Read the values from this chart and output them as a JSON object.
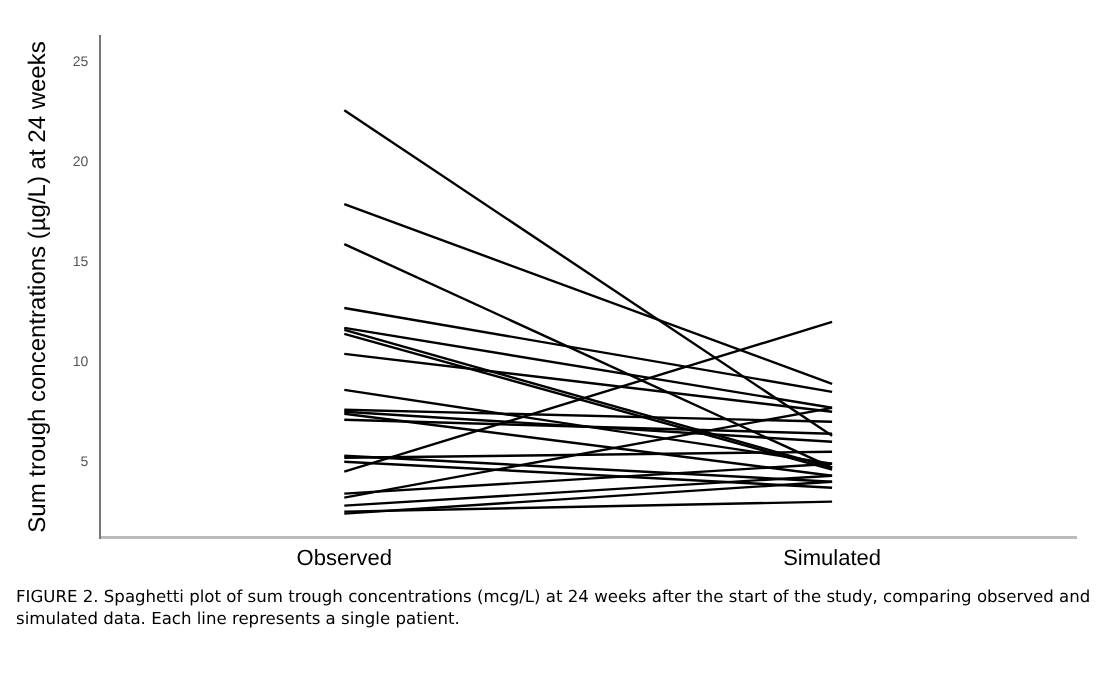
{
  "chart_data": {
    "type": "line",
    "ylabel": "Sum trough concentrations (µg/L) at 24 weeks",
    "categories": [
      "Observed",
      "Simulated"
    ],
    "ylim": [
      1.2,
      26.3
    ],
    "yticks": [
      5,
      10,
      15,
      20,
      25
    ],
    "grid": false,
    "legend": false,
    "marker": "none",
    "line_style": "solid",
    "series": [
      {
        "color": "#000000",
        "values": [
          22.6,
          6.3
        ]
      },
      {
        "color": "#000000",
        "values": [
          17.9,
          8.9
        ]
      },
      {
        "color": "#000000",
        "values": [
          15.9,
          4.7
        ]
      },
      {
        "color": "#000000",
        "values": [
          12.7,
          8.5
        ]
      },
      {
        "color": "#000000",
        "values": [
          11.7,
          7.7
        ]
      },
      {
        "color": "#000000",
        "values": [
          11.6,
          4.7
        ]
      },
      {
        "color": "#000000",
        "values": [
          11.4,
          4.6
        ]
      },
      {
        "color": "#000000",
        "values": [
          10.4,
          7.5
        ]
      },
      {
        "color": "#000000",
        "values": [
          8.6,
          4.9
        ]
      },
      {
        "color": "#000000",
        "values": [
          7.6,
          7.0
        ]
      },
      {
        "color": "#000000",
        "values": [
          7.5,
          6.0
        ]
      },
      {
        "color": "#000000",
        "values": [
          7.4,
          4.3
        ]
      },
      {
        "color": "#000000",
        "values": [
          7.1,
          6.4
        ]
      },
      {
        "color": "#000000",
        "values": [
          5.3,
          4.0
        ]
      },
      {
        "color": "#000000",
        "values": [
          5.2,
          5.5
        ]
      },
      {
        "color": "#000000",
        "values": [
          5.0,
          3.7
        ]
      },
      {
        "color": "#000000",
        "values": [
          4.5,
          12.0
        ]
      },
      {
        "color": "#000000",
        "values": [
          3.4,
          4.9
        ]
      },
      {
        "color": "#000000",
        "values": [
          3.2,
          7.7
        ]
      },
      {
        "color": "#000000",
        "values": [
          2.8,
          4.3
        ]
      },
      {
        "color": "#000000",
        "values": [
          2.5,
          3.0
        ]
      },
      {
        "color": "#000000",
        "values": [
          2.4,
          4.0
        ]
      }
    ],
    "annotations": [
      "FIGURE 2.  Spaghetti plot of sum trough concentrations (mcg/L) at 24 weeks after the start of the study, comparing observed and simulated data. Each line represents a single patient."
    ]
  }
}
